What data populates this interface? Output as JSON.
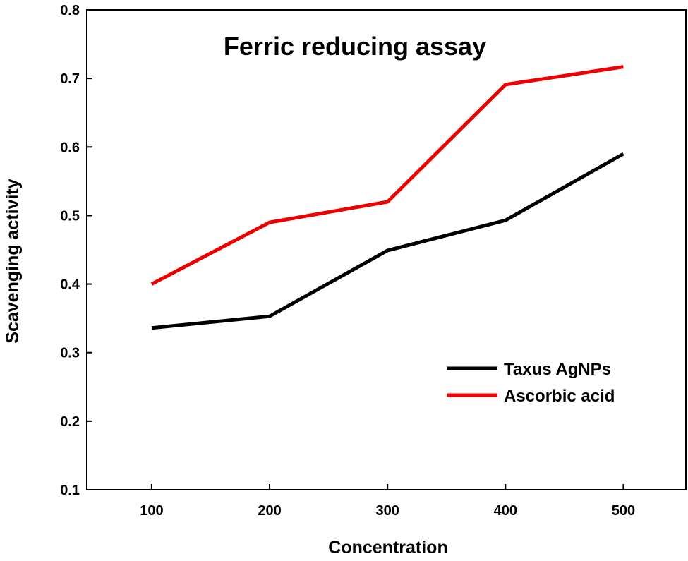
{
  "chart_data": {
    "type": "line",
    "title": "Ferric reducing assay",
    "xlabel": "Concentration",
    "ylabel": "Scavenging activity",
    "x": [
      100,
      200,
      300,
      400,
      500
    ],
    "xlim": [
      45,
      553
    ],
    "ylim": [
      0.1,
      0.8
    ],
    "xticks": [
      "100",
      "200",
      "300",
      "400",
      "500"
    ],
    "yticks": [
      "0.1",
      "0.2",
      "0.3",
      "0.4",
      "0.5",
      "0.6",
      "0.7",
      "0.8"
    ],
    "grid": false,
    "legend_position": "bottom-right",
    "series": [
      {
        "name": "Taxus AgNPs",
        "color": "#000000",
        "values": [
          0.336,
          0.353,
          0.449,
          0.493,
          0.59
        ]
      },
      {
        "name": "Ascorbic acid",
        "color": "#ee0000",
        "values": [
          0.4,
          0.49,
          0.52,
          0.691,
          0.717
        ]
      }
    ]
  }
}
